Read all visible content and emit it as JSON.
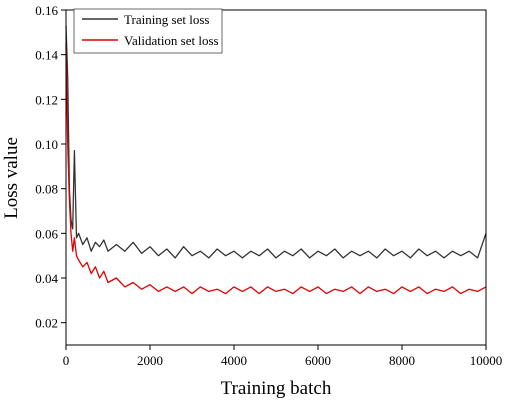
{
  "chart_data": {
    "type": "line",
    "xlabel": "Training batch",
    "ylabel": "Loss value",
    "xlim": [
      0,
      10000
    ],
    "ylim": [
      0.01,
      0.16
    ],
    "xticks": [
      0,
      2000,
      4000,
      6000,
      8000,
      10000
    ],
    "xtick_labels": [
      "0",
      "2000",
      "4000",
      "6000",
      "8000",
      "10000"
    ],
    "yticks": [
      0.02,
      0.04,
      0.06,
      0.08,
      0.1,
      0.12,
      0.14,
      0.16
    ],
    "ytick_labels": [
      "0.02",
      "0.04",
      "0.06",
      "0.08",
      "0.10",
      "0.12",
      "0.14",
      "0.16"
    ],
    "grid": false,
    "legend_position": "top-left",
    "series": [
      {
        "name": "Training set loss",
        "color": "#333333",
        "x": [
          0,
          40,
          80,
          120,
          160,
          200,
          250,
          300,
          400,
          500,
          600,
          700,
          800,
          900,
          1000,
          1200,
          1400,
          1600,
          1800,
          2000,
          2200,
          2400,
          2600,
          2800,
          3000,
          3200,
          3400,
          3600,
          3800,
          4000,
          4200,
          4400,
          4600,
          4800,
          5000,
          5200,
          5400,
          5600,
          5800,
          6000,
          6200,
          6400,
          6600,
          6800,
          7000,
          7200,
          7400,
          7600,
          7800,
          8000,
          8200,
          8400,
          8600,
          8800,
          9000,
          9200,
          9400,
          9600,
          9800,
          10000
        ],
        "y": [
          0.153,
          0.13,
          0.08,
          0.066,
          0.062,
          0.097,
          0.058,
          0.06,
          0.055,
          0.058,
          0.052,
          0.056,
          0.054,
          0.057,
          0.052,
          0.055,
          0.052,
          0.056,
          0.051,
          0.054,
          0.05,
          0.053,
          0.049,
          0.054,
          0.05,
          0.052,
          0.049,
          0.053,
          0.05,
          0.052,
          0.049,
          0.052,
          0.05,
          0.053,
          0.049,
          0.052,
          0.05,
          0.053,
          0.049,
          0.052,
          0.05,
          0.053,
          0.049,
          0.052,
          0.05,
          0.052,
          0.049,
          0.053,
          0.05,
          0.052,
          0.049,
          0.053,
          0.05,
          0.052,
          0.049,
          0.052,
          0.05,
          0.052,
          0.049,
          0.06
        ]
      },
      {
        "name": "Validation set loss",
        "color": "#e00000",
        "x": [
          0,
          40,
          80,
          120,
          160,
          200,
          250,
          300,
          400,
          500,
          600,
          700,
          800,
          900,
          1000,
          1200,
          1400,
          1600,
          1800,
          2000,
          2200,
          2400,
          2600,
          2800,
          3000,
          3200,
          3400,
          3600,
          3800,
          4000,
          4200,
          4400,
          4600,
          4800,
          5000,
          5200,
          5400,
          5600,
          5800,
          6000,
          6200,
          6400,
          6600,
          6800,
          7000,
          7200,
          7400,
          7600,
          7800,
          8000,
          8200,
          8400,
          8600,
          8800,
          9000,
          9200,
          9400,
          9600,
          9800,
          10000
        ],
        "y": [
          0.145,
          0.1,
          0.075,
          0.06,
          0.052,
          0.058,
          0.05,
          0.048,
          0.045,
          0.047,
          0.042,
          0.045,
          0.04,
          0.043,
          0.038,
          0.04,
          0.036,
          0.038,
          0.035,
          0.037,
          0.034,
          0.036,
          0.034,
          0.036,
          0.033,
          0.036,
          0.034,
          0.035,
          0.033,
          0.036,
          0.034,
          0.036,
          0.033,
          0.036,
          0.034,
          0.035,
          0.033,
          0.036,
          0.034,
          0.036,
          0.033,
          0.035,
          0.034,
          0.036,
          0.033,
          0.036,
          0.034,
          0.035,
          0.033,
          0.036,
          0.034,
          0.036,
          0.033,
          0.035,
          0.034,
          0.036,
          0.033,
          0.035,
          0.034,
          0.036
        ]
      }
    ]
  }
}
